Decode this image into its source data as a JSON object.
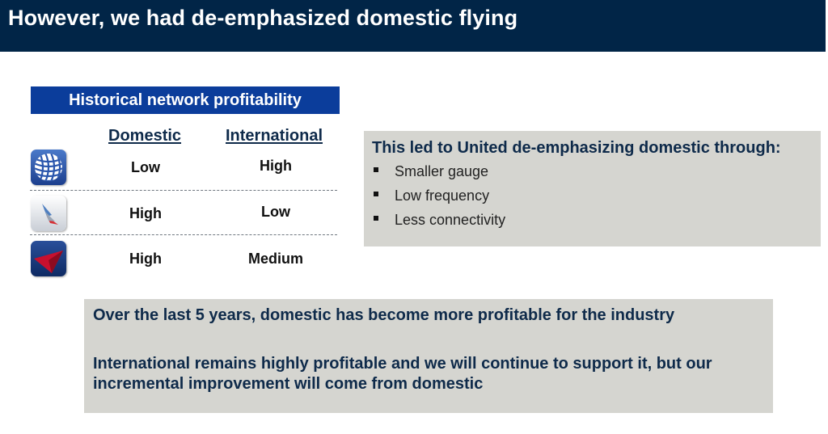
{
  "slide": {
    "title": "However, we had de-emphasized domestic flying"
  },
  "profitability": {
    "header": "Historical network profitability",
    "columns": [
      "Domestic",
      "International"
    ],
    "rows": [
      {
        "logo_icon": "united-airlines-globe-logo",
        "domestic": "Low",
        "international": "High"
      },
      {
        "logo_icon": "american-airlines-flight-symbol-logo",
        "domestic": "High",
        "international": "Low"
      },
      {
        "logo_icon": "delta-widget-logo",
        "domestic": "High",
        "international": "Medium"
      }
    ]
  },
  "callout": {
    "title": "This led to United de-emphasizing domestic through:",
    "bullets": [
      "Smaller gauge",
      "Low frequency",
      "Less connectivity"
    ]
  },
  "summary": {
    "line1": "Over the last 5 years, domestic has become more profitable for the industry",
    "line2": "International remains highly profitable and we will continue to support it, but our incremental improvement will come from domestic"
  },
  "colors": {
    "title_bar": "#012547",
    "table_header": "#0b3d9b",
    "callout_bg": "#d5d5d0",
    "text_navy": "#0e2a4a"
  }
}
